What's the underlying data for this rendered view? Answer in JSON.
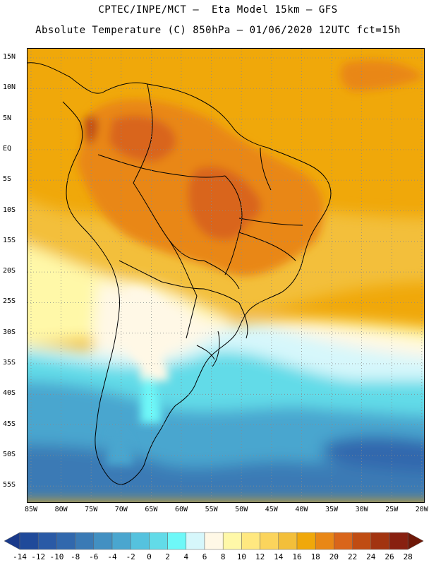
{
  "title_line1": "CPTEC/INPE/MCT –  Eta Model 15km – GFS",
  "title_line2": "Absolute Temperature (C) 850hPa – 01/06/2020 12UTC fct=15h",
  "map": {
    "type": "temperature-field-map",
    "region": "South America",
    "latitude_labels": [
      "15N",
      "10N",
      "5N",
      "EQ",
      "5S",
      "10S",
      "15S",
      "20S",
      "25S",
      "30S",
      "35S",
      "40S",
      "45S",
      "50S",
      "55S"
    ],
    "longitude_labels": [
      "85W",
      "80W",
      "75W",
      "70W",
      "65W",
      "60W",
      "55W",
      "50W",
      "45W",
      "40W",
      "35W",
      "30W",
      "25W",
      "20W"
    ],
    "grid": "dotted",
    "coastline_color": "#000000"
  },
  "colorbar": {
    "labels": [
      "-14",
      "-12",
      "-10",
      "-8",
      "-6",
      "-4",
      "-2",
      "0",
      "2",
      "4",
      "6",
      "8",
      "10",
      "12",
      "14",
      "16",
      "18",
      "20",
      "22",
      "24",
      "26",
      "28"
    ],
    "colors": [
      "#1a3a8a",
      "#204a9a",
      "#2a5aa6",
      "#3168ad",
      "#3a7ab5",
      "#4290c2",
      "#4aa6cf",
      "#55c2de",
      "#62dbe8",
      "#6ef8f8",
      "#d6f7fb",
      "#fff8e6",
      "#fff8a8",
      "#ffe880",
      "#fbd45c",
      "#f3bf3a",
      "#f0a80a",
      "#e98716",
      "#d9651a",
      "#c04c12",
      "#a23410",
      "#882010",
      "#6e1808"
    ]
  }
}
